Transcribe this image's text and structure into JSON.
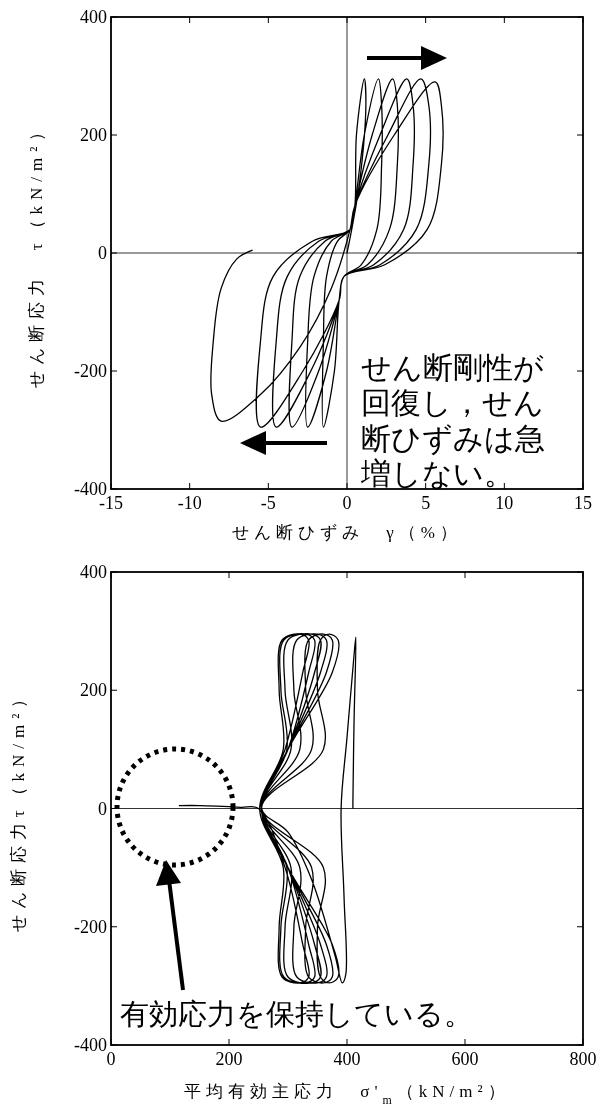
{
  "chart_data": [
    {
      "type": "line",
      "xlabel": "せん断ひずみ　γ（%）",
      "ylabel": "せん断応力　τ（kN/m²）",
      "xlim": [
        -15,
        15
      ],
      "xticks": [
        -15,
        -10,
        -5,
        0,
        5,
        10,
        15
      ],
      "ylim": [
        -400,
        400
      ],
      "yticks": [
        -400,
        -200,
        0,
        200,
        400
      ],
      "ref_lines": [
        {
          "axis": "x",
          "value": 0
        },
        {
          "axis": "y",
          "value": 0
        }
      ],
      "annotations": [
        "せん断剛性が回復し，せん断ひずみは急増しない。"
      ],
      "series": [
        {
          "color": "#000000",
          "x": [
            0,
            0.3,
            0.8,
            1.2,
            1.1,
            0.6,
            0.5,
            0.2,
            -0.6,
            -1.3,
            -1.5,
            -1.5,
            -0.8,
            -0.5,
            -0.2,
            0.9,
            1.9,
            2.2,
            2.2,
            2.0,
            1.1,
            0.5,
            0.2,
            -1,
            -2.1,
            -2.5,
            -2.5,
            -1.3,
            -0.5,
            -0.2,
            1.3,
            2.7,
            3.2,
            3.2,
            2.9,
            1.6,
            0.5,
            0.2,
            -1.4,
            -3.0,
            -3.5,
            -3.5,
            -1.8,
            -0.5,
            -0.2,
            1.7,
            3.6,
            4.2,
            4.2,
            3.8,
            2.1,
            0.5,
            0.2,
            -1.8,
            -3.8,
            -4.5,
            -4.5,
            -2.3,
            -0.5,
            -0.2,
            2.1,
            4.4,
            5.2,
            5.2,
            4.7,
            2.6,
            0.5,
            0.2,
            -2.2,
            -4.7,
            -5.5,
            -5.5,
            -2.8,
            -0.5,
            -0.2,
            2.4,
            5.1,
            6,
            6,
            5.6,
            3,
            0.5,
            0.2,
            -1,
            -3,
            -5.5,
            -8,
            -8.6,
            -8.5,
            -8,
            -7,
            -6
          ],
          "values": [
            0,
            40,
            120,
            250,
            295,
            200,
            80,
            40,
            20,
            -40,
            -150,
            -295,
            -200,
            -80,
            -40,
            -20,
            40,
            150,
            250,
            295,
            200,
            80,
            40,
            20,
            -40,
            -150,
            -295,
            -200,
            -80,
            -40,
            -20,
            40,
            150,
            250,
            295,
            200,
            80,
            40,
            20,
            -40,
            -150,
            -295,
            -200,
            -80,
            -40,
            -20,
            40,
            150,
            250,
            295,
            200,
            80,
            40,
            20,
            -40,
            -150,
            -295,
            -200,
            -80,
            -40,
            -20,
            40,
            150,
            250,
            295,
            200,
            80,
            40,
            20,
            -40,
            -150,
            -295,
            -200,
            -80,
            -40,
            -20,
            40,
            150,
            250,
            290,
            200,
            80,
            40,
            -60,
            -160,
            -240,
            -285,
            -240,
            -150,
            -60,
            -10,
            5
          ]
        }
      ]
    },
    {
      "type": "line",
      "xlabel": "平均有効主応力　σ'$_{m}$（kN/m²）",
      "ylabel": "せん断応力τ（kN/m²）",
      "xlim": [
        0,
        800
      ],
      "xticks": [
        0,
        200,
        400,
        600,
        800
      ],
      "ylim": [
        -400,
        400
      ],
      "yticks": [
        -400,
        -200,
        0,
        200,
        400
      ],
      "ref_lines": [
        {
          "axis": "y",
          "value": 0
        }
      ],
      "annotations": [
        "有効応力を保持している。"
      ],
      "series": [
        {
          "color": "#000000",
          "x": [
            410,
            410,
            412,
            415,
            412,
            400,
            390,
            395,
            398,
            392,
            380,
            340,
            300,
            255,
            300,
            375,
            385,
            370,
            355,
            350,
            360,
            255,
            360,
            350,
            355,
            370,
            385,
            375,
            300,
            255,
            300,
            365,
            375,
            360,
            335,
            330,
            340,
            255,
            340,
            330,
            335,
            360,
            375,
            365,
            300,
            255,
            300,
            355,
            365,
            350,
            315,
            310,
            320,
            255,
            320,
            310,
            315,
            350,
            365,
            355,
            300,
            255,
            300,
            345,
            355,
            340,
            300,
            295,
            305,
            255,
            305,
            295,
            300,
            340,
            355,
            345,
            300,
            255,
            300,
            335,
            345,
            330,
            293,
            288,
            298,
            255,
            298,
            288,
            293,
            330,
            345,
            335,
            300,
            255,
            295,
            325,
            335,
            320,
            290,
            285,
            292,
            252,
            292,
            285,
            290,
            320,
            335,
            325,
            295,
            250,
            220,
            180,
            150,
            115
          ],
          "values": [
            0,
            10,
            150,
            290,
            260,
            120,
            0,
            -150,
            -280,
            -295,
            -250,
            -120,
            -40,
            0,
            100,
            230,
            285,
            295,
            285,
            200,
            100,
            0,
            -100,
            -200,
            -285,
            -295,
            -285,
            -230,
            -100,
            0,
            100,
            230,
            285,
            295,
            285,
            200,
            100,
            0,
            -100,
            -200,
            -285,
            -295,
            -285,
            -230,
            -100,
            0,
            100,
            230,
            285,
            295,
            285,
            200,
            100,
            0,
            -100,
            -200,
            -285,
            -295,
            -285,
            -230,
            -100,
            0,
            100,
            230,
            285,
            295,
            285,
            200,
            100,
            0,
            -100,
            -200,
            -285,
            -295,
            -285,
            -230,
            -100,
            0,
            100,
            230,
            285,
            295,
            285,
            200,
            100,
            0,
            -100,
            -200,
            -285,
            -295,
            -285,
            -230,
            -100,
            0,
            100,
            230,
            285,
            295,
            285,
            200,
            100,
            0,
            -100,
            -200,
            -285,
            -295,
            -285,
            -230,
            -100,
            0,
            2,
            4,
            5,
            5
          ]
        }
      ]
    }
  ]
}
